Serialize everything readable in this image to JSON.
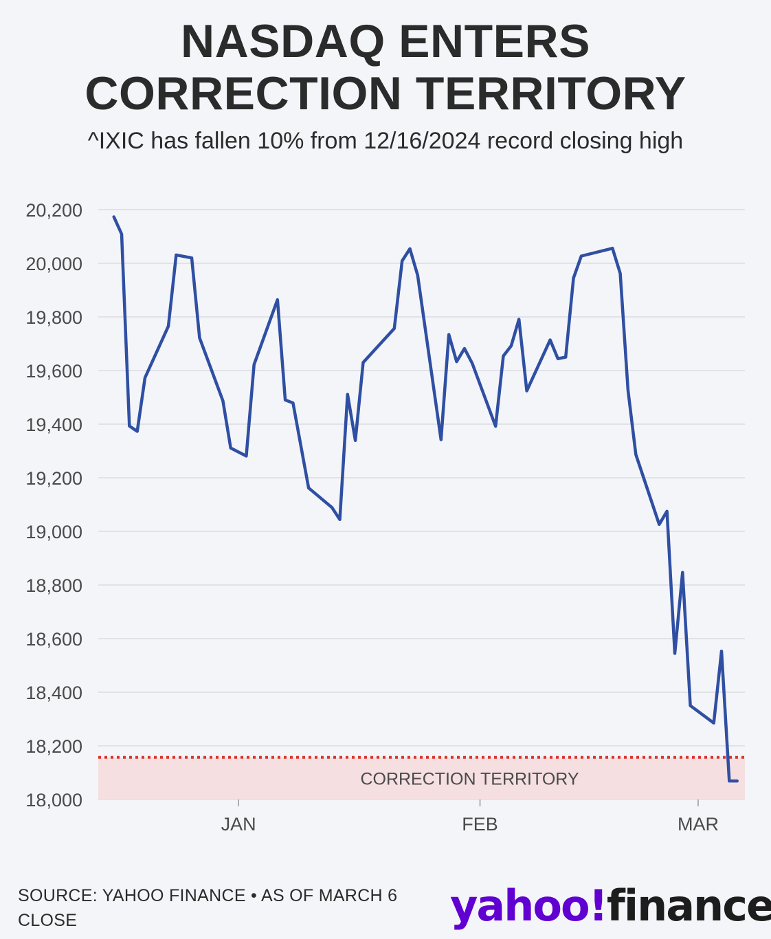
{
  "title": [
    "NASDAQ ENTERS",
    "CORRECTION TERRITORY"
  ],
  "subtitle": "^IXIC has fallen 10% from 12/16/2024 record closing high",
  "source": "SOURCE: YAHOO FINANCE • AS OF MARCH 6 CLOSE",
  "logo": {
    "brand": "yahoo!",
    "product": "finance",
    "brand_color": "#6001d2",
    "product_color": "#1d1d1d"
  },
  "chart_data": {
    "type": "line",
    "title": "",
    "xlabel": "",
    "ylabel": "",
    "ylim": [
      18000,
      20200
    ],
    "yticks": [
      20200,
      20000,
      19800,
      19600,
      19400,
      19200,
      19000,
      18800,
      18600,
      18400,
      18200,
      18000
    ],
    "xticks": [
      {
        "label": "JAN",
        "x": "2025-01-01"
      },
      {
        "label": "FEB",
        "x": "2025-02-01"
      },
      {
        "label": "MAR",
        "x": "2025-03-01"
      }
    ],
    "xlim": [
      "2024-12-14",
      "2025-03-07"
    ],
    "grid": true,
    "line_color": "#2f4fa2",
    "threshold": {
      "value": 18157,
      "color": "#d9342b",
      "style": "dotted"
    },
    "band": {
      "from": 18000,
      "to": 18157,
      "label": "CORRECTION TERRITORY",
      "color": "#f5dfe1"
    },
    "series": [
      {
        "x": [
          "2024-12-16",
          "2024-12-17",
          "2024-12-18",
          "2024-12-19",
          "2024-12-20",
          "2024-12-23",
          "2024-12-24",
          "2024-12-26",
          "2024-12-27",
          "2024-12-30",
          "2024-12-31",
          "2025-01-02",
          "2025-01-03",
          "2025-01-06",
          "2025-01-07",
          "2025-01-08",
          "2025-01-10",
          "2025-01-13",
          "2025-01-14",
          "2025-01-15",
          "2025-01-16",
          "2025-01-17",
          "2025-01-21",
          "2025-01-22",
          "2025-01-23",
          "2025-01-24",
          "2025-01-27",
          "2025-01-28",
          "2025-01-29",
          "2025-01-30",
          "2025-01-31",
          "2025-02-03",
          "2025-02-04",
          "2025-02-05",
          "2025-02-06",
          "2025-02-07",
          "2025-02-10",
          "2025-02-11",
          "2025-02-12",
          "2025-02-13",
          "2025-02-14",
          "2025-02-18",
          "2025-02-19",
          "2025-02-20",
          "2025-02-21",
          "2025-02-24",
          "2025-02-25",
          "2025-02-26",
          "2025-02-27",
          "2025-02-28",
          "2025-03-03",
          "2025-03-04",
          "2025-03-05",
          "2025-03-06"
        ],
        "values": [
          20173,
          20109,
          19393,
          19373,
          19573,
          19765,
          20031,
          20020,
          19722,
          19487,
          19311,
          19281,
          19622,
          19864,
          19490,
          19479,
          19162,
          19089,
          19044,
          19511,
          19339,
          19630,
          19757,
          20009,
          20054,
          19955,
          19342,
          19734,
          19633,
          19682,
          19627,
          19392,
          19654,
          19692,
          19791,
          19524,
          19714,
          19644,
          19650,
          19945,
          20027,
          20056,
          19962,
          19527,
          19287,
          19026,
          19075,
          18545,
          18847,
          18350,
          18285,
          18553,
          18069,
          18069
        ]
      }
    ]
  }
}
